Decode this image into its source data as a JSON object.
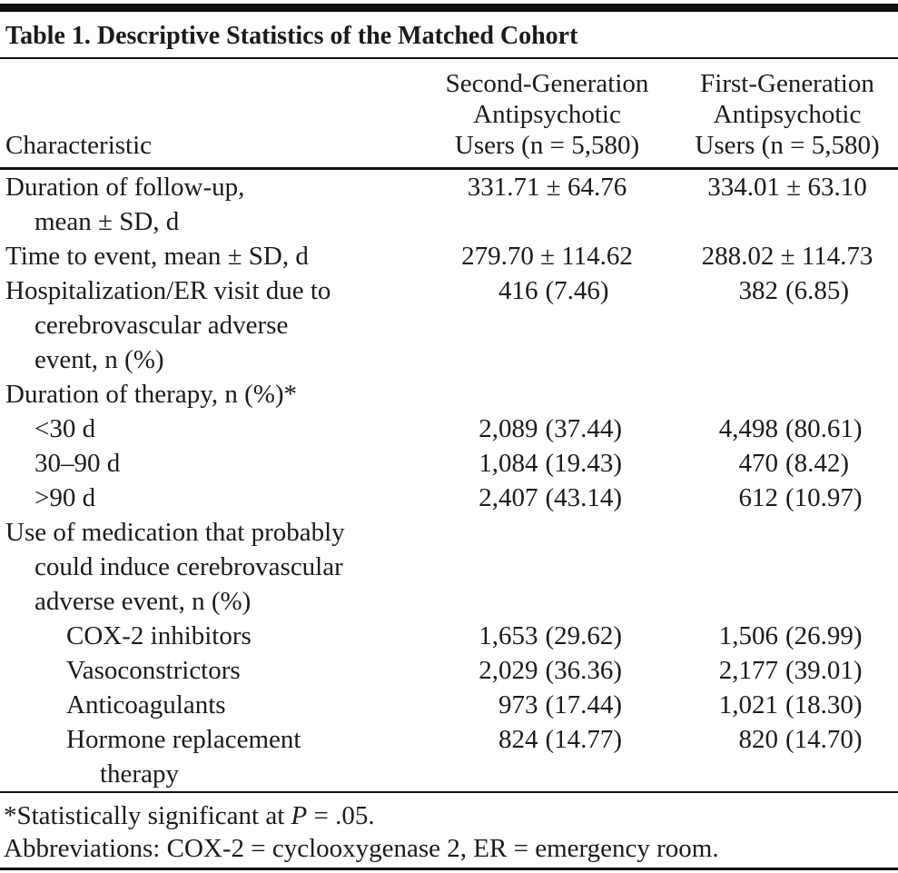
{
  "table": {
    "title": "Table 1. Descriptive Statistics of the Matched Cohort",
    "columns": {
      "characteristic": "Characteristic",
      "col2_lines": [
        "Second-Generation",
        "Antipsychotic",
        "Users (n = 5,580)"
      ],
      "col3_lines": [
        "First-Generation",
        "Antipsychotic",
        "Users (n = 5,580)"
      ]
    },
    "rows": [
      {
        "label_lines": [
          "Duration of follow-up,",
          "mean ± SD, d"
        ],
        "sga": {
          "value": "331.71 ± 64.76"
        },
        "fga": {
          "value": "334.01 ± 63.10"
        }
      },
      {
        "label_lines": [
          "Time to event, mean ± SD, d"
        ],
        "sga": {
          "value": "279.70 ± 114.62"
        },
        "fga": {
          "value": "288.02 ± 114.73"
        }
      },
      {
        "label_lines": [
          "Hospitalization/ER visit due to",
          "cerebrovascular adverse",
          "event, n (%)"
        ],
        "sga": {
          "count": "416",
          "percent": "(7.46)"
        },
        "fga": {
          "count": "382",
          "percent": "(6.85)"
        }
      },
      {
        "label_lines": [
          "Duration of therapy, n (%)*"
        ]
      },
      {
        "label_lines": [
          "<30 d"
        ],
        "sga": {
          "count": "2,089",
          "percent": "(37.44)"
        },
        "fga": {
          "count": "4,498",
          "percent": "(80.61)"
        }
      },
      {
        "label_lines": [
          "30–90 d"
        ],
        "sga": {
          "count": "1,084",
          "percent": "(19.43)"
        },
        "fga": {
          "count": "470",
          "percent": "(8.42)"
        }
      },
      {
        "label_lines": [
          ">90 d"
        ],
        "sga": {
          "count": "2,407",
          "percent": "(43.14)"
        },
        "fga": {
          "count": "612",
          "percent": "(10.97)"
        }
      },
      {
        "label_lines": [
          "Use of medication that probably",
          "could induce cerebrovascular",
          "adverse event, n (%)"
        ]
      },
      {
        "label_lines": [
          "COX-2 inhibitors"
        ],
        "sga": {
          "count": "1,653",
          "percent": "(29.62)"
        },
        "fga": {
          "count": "1,506",
          "percent": "(26.99)"
        }
      },
      {
        "label_lines": [
          "Vasoconstrictors"
        ],
        "sga": {
          "count": "2,029",
          "percent": "(36.36)"
        },
        "fga": {
          "count": "2,177",
          "percent": "(39.01)"
        }
      },
      {
        "label_lines": [
          "Anticoagulants"
        ],
        "sga": {
          "count": "973",
          "percent": "(17.44)"
        },
        "fga": {
          "count": "1,021",
          "percent": "(18.30)"
        }
      },
      {
        "label_lines": [
          "Hormone replacement",
          "therapy"
        ],
        "sga": {
          "count": "824",
          "percent": "(14.77)"
        },
        "fga": {
          "count": "820",
          "percent": "(14.70)"
        }
      }
    ],
    "footnotes": {
      "significance_prefix": "*Statistically significant at ",
      "significance_p": "P",
      "significance_suffix": " = .05.",
      "abbreviations": "Abbreviations: COX-2 = cyclooxygenase 2, ER = emergency room."
    },
    "accent_color": "#101010"
  }
}
